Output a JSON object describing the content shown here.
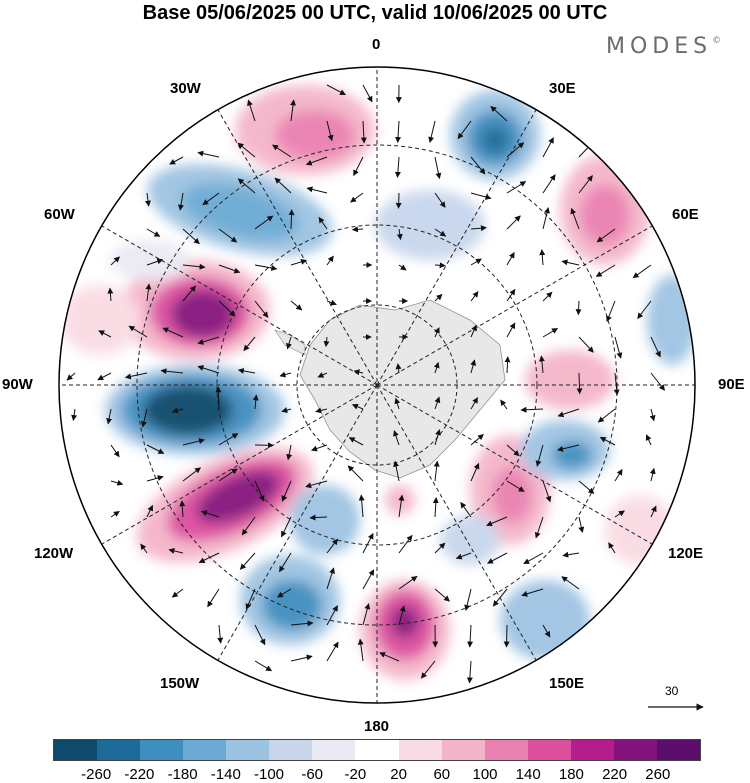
{
  "title": "Base 05/06/2025 00 UTC, valid 10/06/2025 00 UTC",
  "brand": "MODES",
  "brand_mark": "©",
  "longitude_labels": {
    "lon_0": "0",
    "lon_30E": "30E",
    "lon_60E": "60E",
    "lon_90E": "90E",
    "lon_120E": "120E",
    "lon_150E": "150E",
    "lon_180": "180",
    "lon_150W": "150W",
    "lon_120W": "120W",
    "lon_90W": "90W",
    "lon_60W": "60W",
    "lon_30W": "30W"
  },
  "reference_vector": "30",
  "colorbar": {
    "colors": [
      "#0d4a6b",
      "#1c6a99",
      "#3f8ec0",
      "#6aaad3",
      "#9dc3e2",
      "#c8d6ec",
      "#e9eaf4",
      "#ffffff",
      "#f9dbe3",
      "#f4b5c9",
      "#ea80b0",
      "#dc4e9e",
      "#b61d8c",
      "#86137d",
      "#5b0e6b"
    ],
    "labels": [
      "-260",
      "-220",
      "-180",
      "-140",
      "-100",
      "-60",
      "-20",
      "20",
      "60",
      "100",
      "140",
      "180",
      "220",
      "260"
    ]
  }
}
